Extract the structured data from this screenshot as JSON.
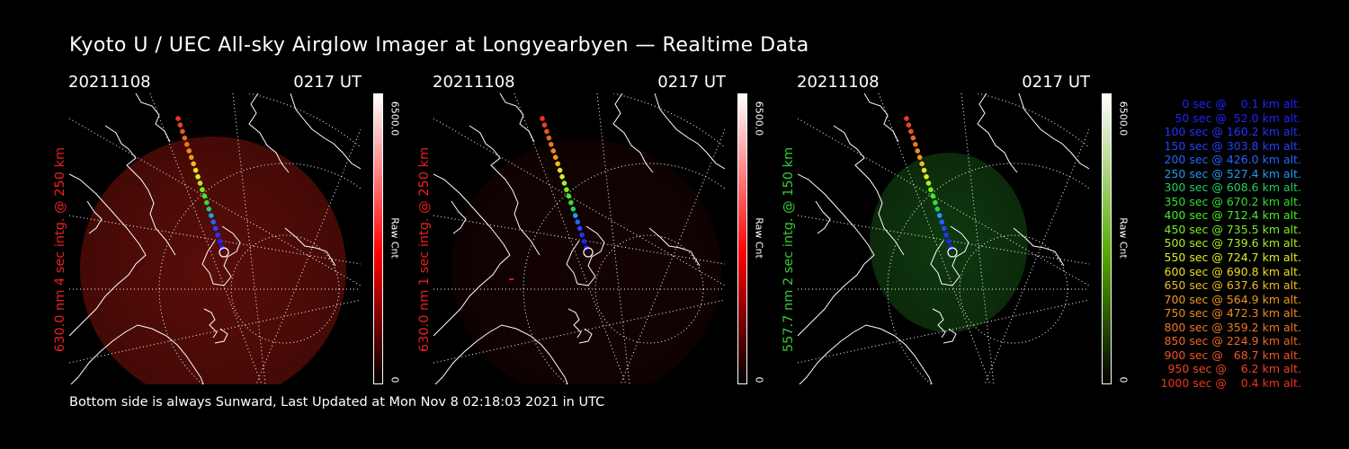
{
  "title": "Kyoto U / UEC All-sky Airglow Imager at Longyearbyen — Realtime Data",
  "footer": "Bottom side is always Sunward, Last Updated at Mon Nov  8 02:18:03 2021 in UTC",
  "panels": [
    {
      "date": "20211108",
      "ut": "0217 UT",
      "label": "630.0 nm 4 sec intg. @ 250 km",
      "label_color": "#e8211e",
      "cbar_max": "6500.0",
      "cbar_unit": "Raw Cnt",
      "cbar_min": "0",
      "colormap": "red",
      "cbar_top": "#ffffff",
      "cbar_bottom": "#ff0000"
    },
    {
      "date": "20211108",
      "ut": "0217 UT",
      "label": "630.0 nm 1 sec intg. @ 250 km",
      "label_color": "#e8211e",
      "cbar_max": "6500.0",
      "cbar_unit": "Raw Cnt",
      "cbar_min": "0",
      "colormap": "red",
      "cbar_top": "#ffffff",
      "cbar_bottom": "#ff0000"
    },
    {
      "date": "20211108",
      "ut": "0217 UT",
      "label": "557.7 nm 2 sec intg. @ 150 km",
      "label_color": "#33cc33",
      "cbar_max": "6500.0",
      "cbar_unit": "Raw Cnt",
      "cbar_min": "0",
      "colormap": "green",
      "cbar_top": "#ffffff",
      "cbar_bottom": "#55aa00"
    }
  ],
  "legend": [
    {
      "text": "   0 sec @    0.1 km alt.",
      "color": "#2222ff"
    },
    {
      "text": "  50 sec @  52.0 km alt.",
      "color": "#2222ff"
    },
    {
      "text": " 100 sec @ 160.2 km alt.",
      "color": "#2233ff"
    },
    {
      "text": " 150 sec @ 303.8 km alt.",
      "color": "#2244ff"
    },
    {
      "text": " 200 sec @ 426.0 km alt.",
      "color": "#2266ff"
    },
    {
      "text": " 250 sec @ 527.4 km alt.",
      "color": "#2299ee"
    },
    {
      "text": " 300 sec @ 608.6 km alt.",
      "color": "#22cc66"
    },
    {
      "text": " 350 sec @ 670.2 km alt.",
      "color": "#33dd33"
    },
    {
      "text": " 400 sec @ 712.4 km alt.",
      "color": "#44ee22"
    },
    {
      "text": " 450 sec @ 735.5 km alt.",
      "color": "#77ee22"
    },
    {
      "text": " 500 sec @ 739.6 km alt.",
      "color": "#aaee22"
    },
    {
      "text": " 550 sec @ 724.7 km alt.",
      "color": "#ddee22"
    },
    {
      "text": " 600 sec @ 690.8 km alt.",
      "color": "#eedd22"
    },
    {
      "text": " 650 sec @ 637.6 km alt.",
      "color": "#eebb22"
    },
    {
      "text": " 700 sec @ 564.9 km alt.",
      "color": "#ee9922"
    },
    {
      "text": " 750 sec @ 472.3 km alt.",
      "color": "#ee8822"
    },
    {
      "text": " 800 sec @ 359.2 km alt.",
      "color": "#ee7722"
    },
    {
      "text": " 850 sec @ 224.9 km alt.",
      "color": "#ee6622"
    },
    {
      "text": " 900 sec @   68.7 km alt.",
      "color": "#ee5522"
    },
    {
      "text": " 950 sec @    6.2 km alt.",
      "color": "#ee4422"
    },
    {
      "text": "1000 sec @    0.4 km alt.",
      "color": "#ee3322"
    }
  ]
}
